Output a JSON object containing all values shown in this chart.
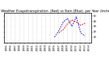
{
  "title": "Milwaukee Weather Evapotranspiration  (Red) vs Rain (Blue)  per Year (Inches)",
  "et_data": {
    "x": [
      2007,
      2008,
      2009,
      2010,
      2011,
      2012,
      2013
    ],
    "y": [
      18,
      24,
      35,
      42,
      38,
      32,
      36
    ]
  },
  "rain_data": {
    "x": [
      2006,
      2007,
      2008,
      2009,
      2010,
      2011,
      2012,
      2013
    ],
    "y": [
      10,
      22,
      38,
      45,
      30,
      48,
      18,
      12
    ]
  },
  "et_color": "#cc0000",
  "rain_color": "#0000cc",
  "bg_color": "#ffffff",
  "grid_color": "#888888",
  "ylim": [
    0,
    55
  ],
  "xlim": [
    1994.5,
    2014.5
  ],
  "xticks": [
    1995,
    1996,
    1997,
    1998,
    1999,
    2000,
    2001,
    2002,
    2003,
    2004,
    2005,
    2006,
    2007,
    2008,
    2009,
    2010,
    2011,
    2012,
    2013,
    2014
  ],
  "yticks_right": [
    10,
    20,
    30,
    40,
    50
  ],
  "title_fontsize": 3.5,
  "tick_fontsize": 2.8,
  "linewidth": 0.7
}
